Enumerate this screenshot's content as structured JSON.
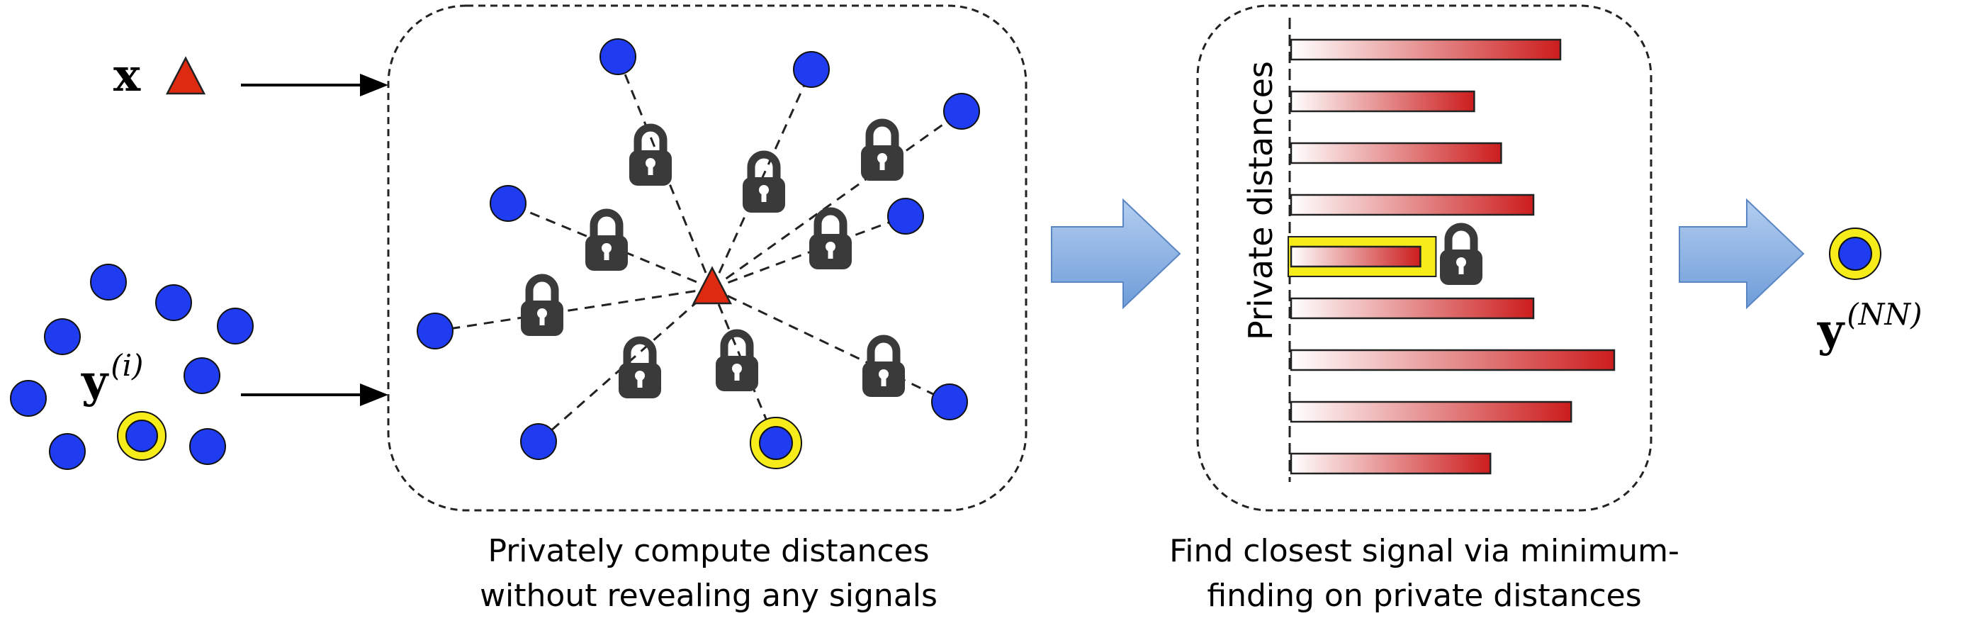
{
  "labels": {
    "query_x": "x",
    "set_y_base": "y",
    "set_y_sup": "(i)",
    "result_base": "y",
    "result_sup": "(NN)",
    "vertical_axis": "Private distances"
  },
  "captions": {
    "step1_line1": "Privately compute distances",
    "step1_line2": "without revealing any signals",
    "step2_line1": "Find closest signal via minimum-",
    "step2_line2": "finding on private distances"
  },
  "bars": {
    "values": [
      0.5,
      0.34,
      0.39,
      0.45,
      0.24,
      0.45,
      0.6,
      0.52,
      0.37
    ],
    "highlighted_index": 4
  },
  "colors": {
    "signal_blue": "#1f3cf0",
    "query_red": "#dd2a10",
    "highlight_yellow": "#f5ec1a",
    "lock_dark": "#3a3a3a",
    "arrow_blue": "#7fa9dd",
    "bar_red": "#cc1d1d"
  }
}
